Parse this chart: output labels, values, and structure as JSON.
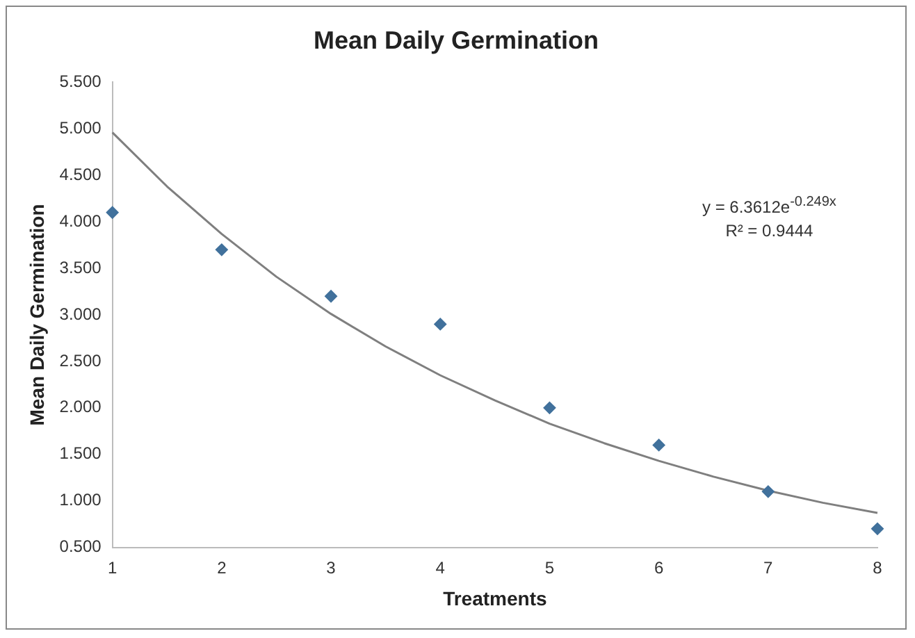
{
  "chart_data": {
    "type": "scatter",
    "title": "Mean Daily Germination",
    "xlabel": "Treatments",
    "ylabel": "Mean Daily Germination",
    "x": [
      1,
      2,
      3,
      4,
      5,
      6,
      7,
      8
    ],
    "series": [
      {
        "color": "#41719c",
        "marker": "diamond",
        "values": [
          4.1,
          3.7,
          3.2,
          2.9,
          2.0,
          1.6,
          1.1,
          0.7
        ]
      },
      {
        "type": "line",
        "color": "#7f7f7f",
        "marker": "none",
        "line_style": "solid",
        "x": [
          1,
          1.5,
          2,
          2.5,
          3,
          3.5,
          4,
          4.5,
          5,
          5.5,
          6,
          6.5,
          7,
          7.5,
          8
        ],
        "values": [
          4.96,
          4.38,
          3.87,
          3.41,
          3.01,
          2.66,
          2.35,
          2.08,
          1.83,
          1.62,
          1.43,
          1.26,
          1.11,
          0.98,
          0.87
        ]
      }
    ],
    "xlim": [
      1,
      8
    ],
    "xticks": [
      1,
      2,
      3,
      4,
      5,
      6,
      7,
      8
    ],
    "ylim": [
      0.5,
      5.5
    ],
    "yticks": [
      {
        "value": 0.5,
        "label": "0.500"
      },
      {
        "value": 1,
        "label": "1.000"
      },
      {
        "value": 1.5,
        "label": "1.500"
      },
      {
        "value": 2,
        "label": "2.000"
      },
      {
        "value": 2.5,
        "label": "2.500"
      },
      {
        "value": 3,
        "label": "3.000"
      },
      {
        "value": 3.5,
        "label": "3.500"
      },
      {
        "value": 4,
        "label": "4.000"
      },
      {
        "value": 4.5,
        "label": "4.500"
      },
      {
        "value": 5,
        "label": "5.000"
      },
      {
        "value": 5.5,
        "label": "5.500"
      }
    ],
    "annotations": [
      "y = 6.3612e$^{-0.249x}$",
      "R² = 0.9444"
    ],
    "grid": false,
    "legend": false
  }
}
